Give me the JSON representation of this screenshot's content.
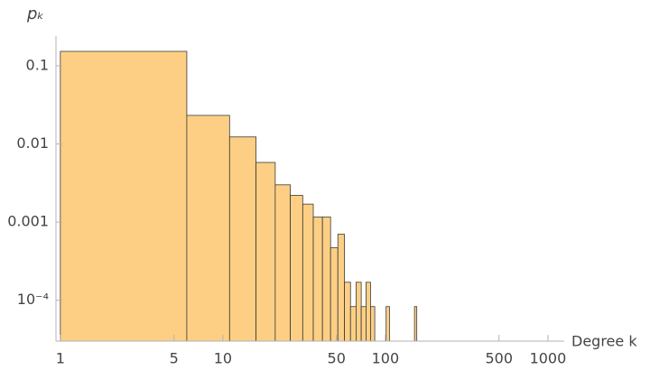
{
  "chart_data": {
    "type": "histogram",
    "x_label": "Degree k",
    "y_label": "pₖ",
    "bins": [
      1,
      6,
      11,
      16,
      21,
      26,
      31,
      36,
      41,
      46,
      51,
      56,
      61,
      66,
      71,
      76,
      81,
      86,
      91,
      96,
      101,
      106,
      111,
      116,
      121,
      126,
      131,
      136,
      141,
      146,
      151,
      156
    ],
    "values": [
      0.153,
      0.0232,
      0.0123,
      0.0058,
      0.003,
      0.0022,
      0.0017,
      0.00116,
      0.00116,
      0.00047,
      0.0007,
      0.00017,
      8.3e-05,
      0.00017,
      8.3e-05,
      0.00017,
      8.3e-05,
      0,
      0,
      0,
      8.3e-05,
      0,
      0,
      0,
      0,
      0,
      0,
      0,
      0,
      0,
      8.3e-05
    ],
    "color": "#fdcf84",
    "edge_color": "#3a3a3a",
    "xscale": "log",
    "yscale": "log",
    "xlim": [
      0.94,
      1260
    ],
    "ylim": [
      3e-05,
      0.24
    ],
    "xticks": [
      1,
      5,
      10,
      50,
      100,
      500,
      1000
    ],
    "yticks": [
      0.1,
      0.01,
      0.001,
      {
        "value": 0.0001,
        "label": "10⁻⁴"
      }
    ]
  }
}
